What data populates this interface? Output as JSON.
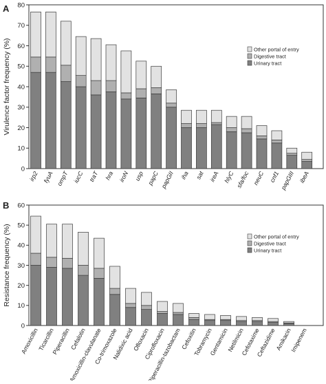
{
  "colors": {
    "urinary": "#808080",
    "digestive": "#b0b0b0",
    "other": "#e2e2e2",
    "stroke": "#3a3a3a"
  },
  "chart_data": [
    {
      "type": "bar",
      "stacked": true,
      "panel_label": "A",
      "ylabel": "Virulence factor frequency (%)",
      "ylim": [
        0,
        80
      ],
      "yticks": [
        0,
        10,
        20,
        30,
        40,
        50,
        60,
        70,
        80
      ],
      "legend_position": "right",
      "categories": [
        "irp2",
        "fyuA",
        "ompT",
        "iucC",
        "traT",
        "hra",
        "iroN",
        "usp",
        "papC",
        "papGII",
        "iha",
        "sat",
        "ireA",
        "hlyC",
        "sfa/foc",
        "neuC",
        "cnf1",
        "papGIII",
        "ibeA"
      ],
      "series": [
        {
          "name": "Urinary tract",
          "values": [
            47.0,
            47.0,
            42.5,
            40.0,
            36.0,
            37.5,
            34.0,
            34.5,
            36.5,
            30.0,
            20.0,
            20.0,
            21.5,
            18.0,
            17.5,
            14.5,
            12.5,
            6.5,
            3.5
          ]
        },
        {
          "name": "Digestive tract",
          "values": [
            7.5,
            7.5,
            8.0,
            5.5,
            7.0,
            5.5,
            3.0,
            4.5,
            3.0,
            2.0,
            2.0,
            2.0,
            1.0,
            2.0,
            2.0,
            1.5,
            1.5,
            1.0,
            1.0
          ]
        },
        {
          "name": "Other portal of entry",
          "values": [
            22.0,
            22.0,
            21.5,
            19.0,
            20.5,
            17.5,
            20.5,
            13.5,
            10.5,
            6.5,
            6.5,
            6.5,
            6.0,
            5.5,
            6.0,
            5.0,
            4.5,
            2.5,
            3.5
          ]
        }
      ]
    },
    {
      "type": "bar",
      "stacked": true,
      "panel_label": "B",
      "ylabel": "Resistance frequency (%)",
      "ylim": [
        0,
        60
      ],
      "yticks": [
        0,
        10,
        20,
        30,
        40,
        50,
        60
      ],
      "legend_position": "right",
      "categories": [
        "Amoxicillin",
        "Ticarcillin",
        "Piperacillin",
        "Cefalotin",
        "Amoxicillin-clavulanate",
        "Co-trimoxazole",
        "Nalidixic acid",
        "Ofloxacin",
        "Ciprofloxacin",
        "Piperacillin-tazobactam",
        "Cefoxitin",
        "Tobramycin",
        "Gentamicin",
        "Netilmicin",
        "Cefotaxime",
        "Ceftazidime",
        "Amikacin",
        "Imipenem"
      ],
      "series": [
        {
          "name": "Urinary tract",
          "values": [
            30.0,
            29.0,
            28.5,
            25.0,
            23.5,
            15.5,
            9.0,
            8.0,
            6.0,
            5.5,
            3.0,
            2.5,
            2.5,
            2.0,
            2.0,
            1.5,
            1.0,
            0.0
          ]
        },
        {
          "name": "Digestive tract",
          "values": [
            6.0,
            5.0,
            5.0,
            5.0,
            5.0,
            3.0,
            2.0,
            2.0,
            1.0,
            1.0,
            1.0,
            0.5,
            0.5,
            0.5,
            0.5,
            0.5,
            0.3,
            0.0
          ]
        },
        {
          "name": "Other portal of entry",
          "values": [
            18.5,
            16.5,
            17.0,
            16.5,
            15.0,
            11.0,
            7.5,
            6.5,
            5.0,
            4.5,
            2.0,
            2.5,
            2.0,
            2.0,
            1.5,
            1.5,
            0.7,
            0.0
          ]
        }
      ]
    }
  ]
}
